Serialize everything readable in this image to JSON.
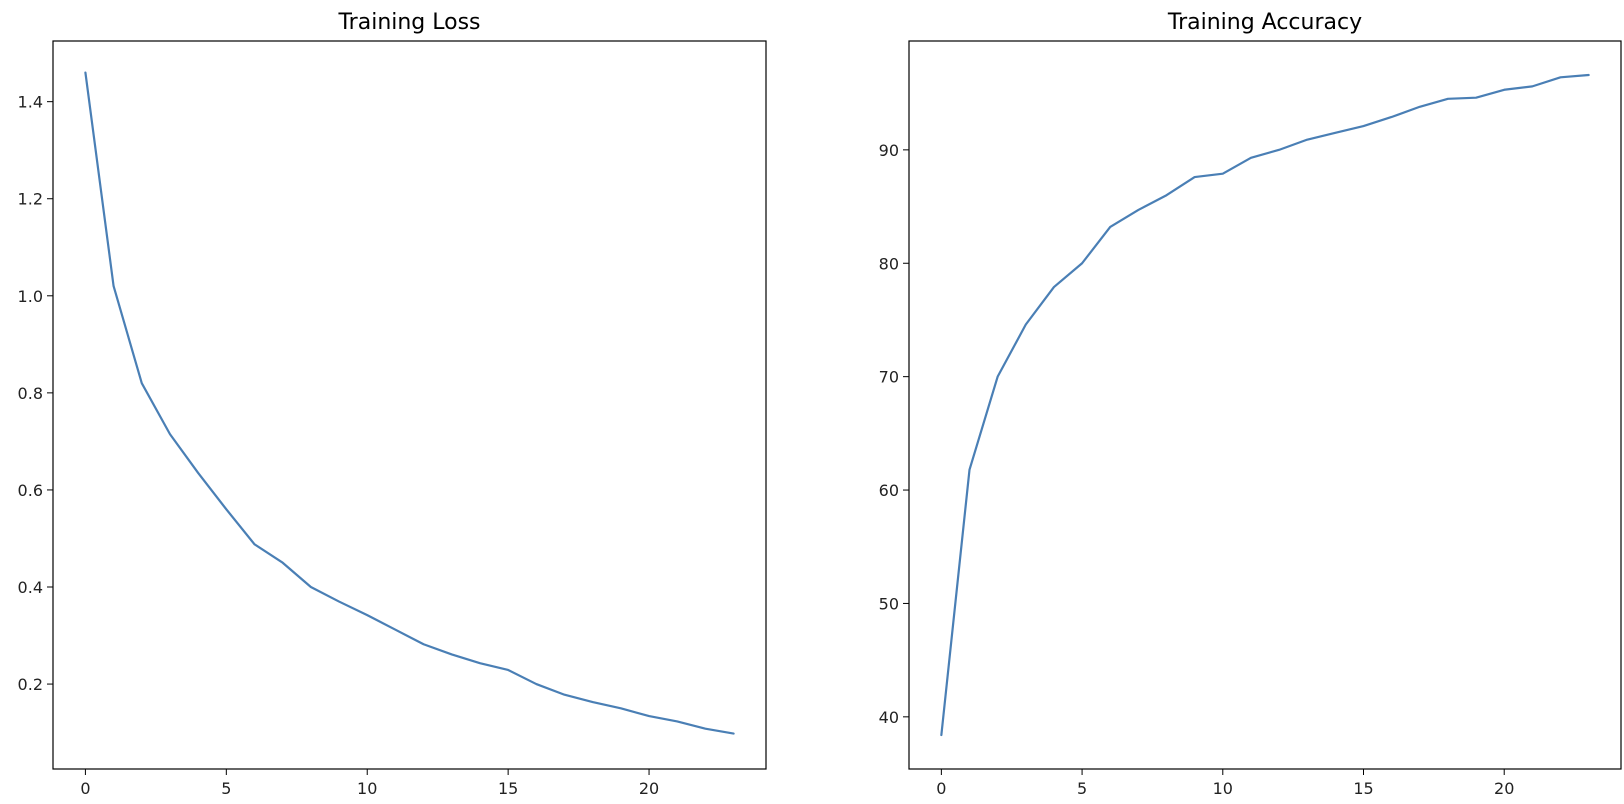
{
  "chart_data": [
    {
      "type": "line",
      "title": "Training Loss",
      "xlabel": "",
      "ylabel": "",
      "xlim": [
        -1.15,
        24.15
      ],
      "ylim": [
        0.025,
        1.525
      ],
      "xticks": [
        0,
        5,
        10,
        15,
        20
      ],
      "yticks": [
        0.2,
        0.4,
        0.6,
        0.8,
        1.0,
        1.2,
        1.4
      ],
      "ytick_labels": [
        "0.2",
        "0.4",
        "0.6",
        "0.8",
        "1.0",
        "1.2",
        "1.4"
      ],
      "grid": false,
      "color": "#4a7fb5",
      "x": [
        0,
        1,
        2,
        3,
        4,
        5,
        6,
        7,
        8,
        9,
        10,
        11,
        12,
        13,
        14,
        15,
        16,
        17,
        18,
        19,
        20,
        21,
        22,
        23
      ],
      "values": [
        1.46,
        1.02,
        0.82,
        0.715,
        0.635,
        0.56,
        0.488,
        0.45,
        0.4,
        0.37,
        0.342,
        0.312,
        0.282,
        0.261,
        0.243,
        0.229,
        0.2,
        0.178,
        0.163,
        0.15,
        0.134,
        0.123,
        0.108,
        0.098
      ]
    },
    {
      "type": "line",
      "title": "Training Accuracy",
      "xlabel": "",
      "ylabel": "",
      "xlim": [
        -1.15,
        24.15
      ],
      "ylim": [
        35.4,
        99.6
      ],
      "xticks": [
        0,
        5,
        10,
        15,
        20
      ],
      "yticks": [
        40,
        50,
        60,
        70,
        80,
        90
      ],
      "ytick_labels": [
        "40",
        "50",
        "60",
        "70",
        "80",
        "90"
      ],
      "grid": false,
      "color": "#4a7fb5",
      "x": [
        0,
        1,
        2,
        3,
        4,
        5,
        6,
        7,
        8,
        9,
        10,
        11,
        12,
        13,
        14,
        15,
        16,
        17,
        18,
        19,
        20,
        21,
        22,
        23
      ],
      "values": [
        38.4,
        61.8,
        70.0,
        74.6,
        77.9,
        80.0,
        83.2,
        84.7,
        86.0,
        87.6,
        87.9,
        89.3,
        90.0,
        90.9,
        91.5,
        92.1,
        92.9,
        93.8,
        94.5,
        94.6,
        95.3,
        95.6,
        96.4,
        96.6
      ]
    }
  ]
}
